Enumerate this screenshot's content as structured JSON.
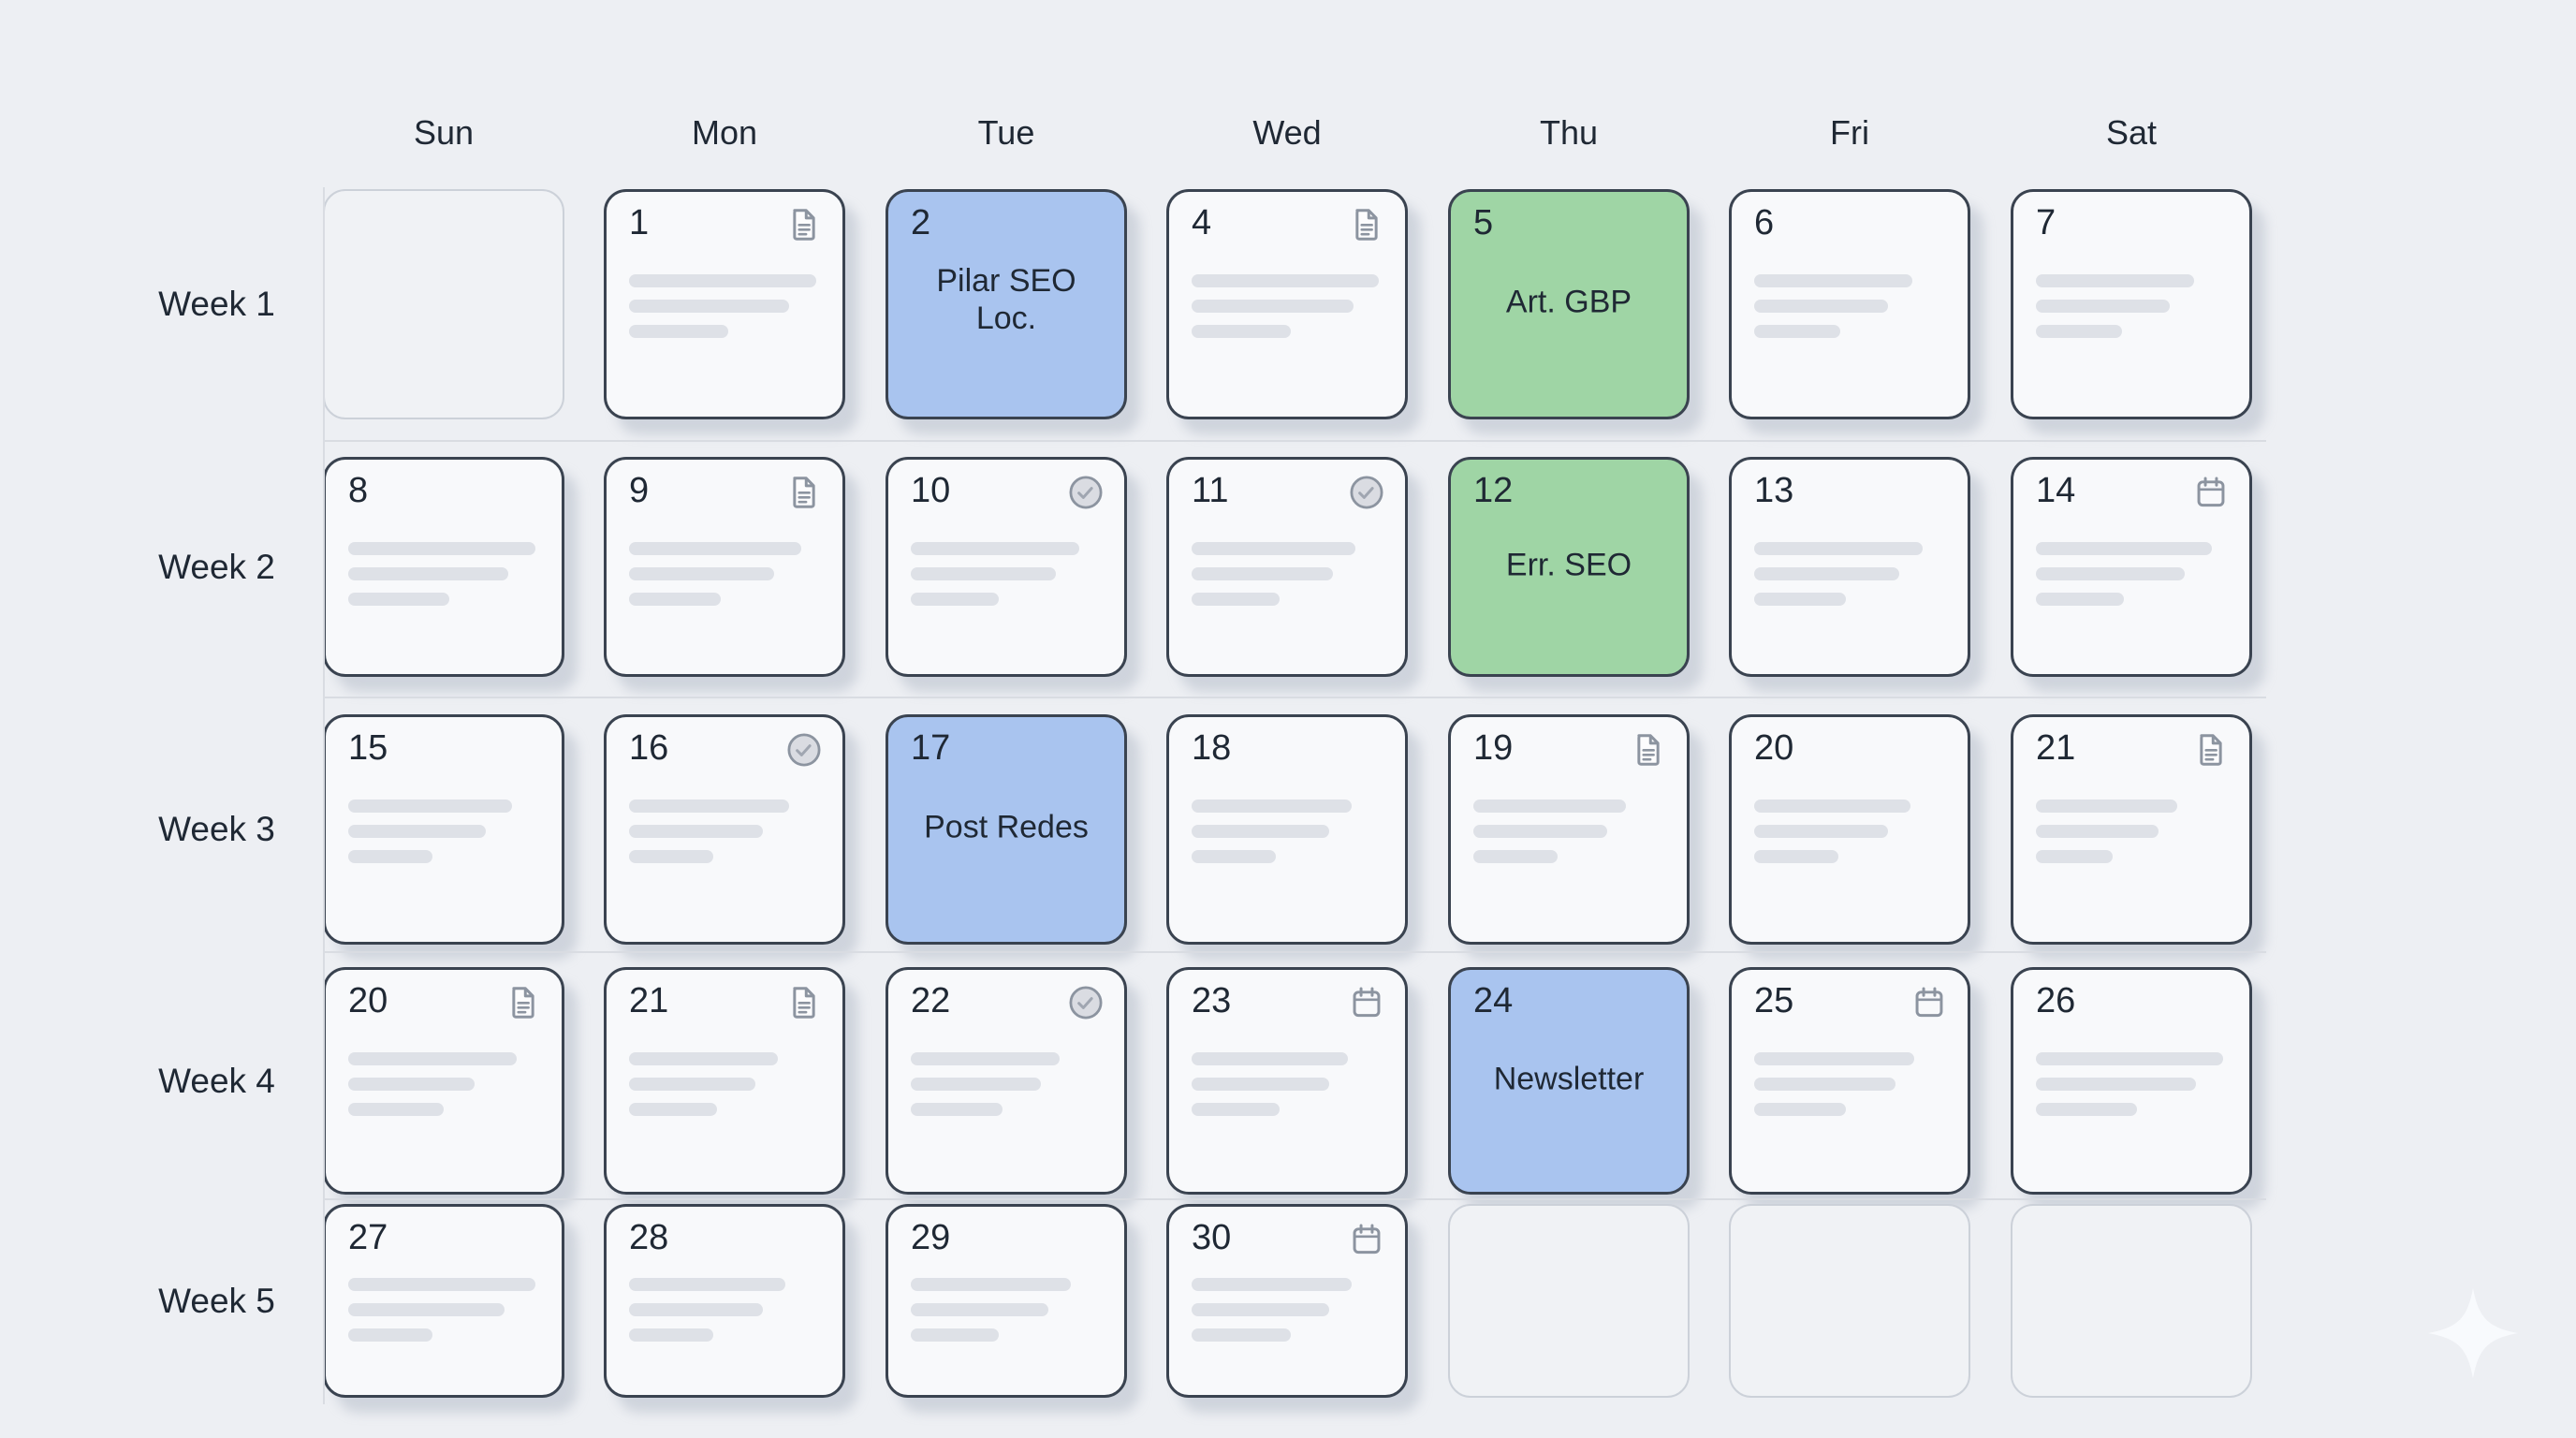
{
  "day_headers": [
    "Sun",
    "Mon",
    "Tue",
    "Wed",
    "Thu",
    "Fri",
    "Sat"
  ],
  "weeks": [
    {
      "label": "Week 1",
      "days": [
        {
          "type": "ghost"
        },
        {
          "day": "1",
          "icon": "document",
          "lines": [
            98,
            84,
            52
          ]
        },
        {
          "day": "2",
          "event": "Pilar SEO Loc.",
          "color": "blue"
        },
        {
          "day": "4",
          "icon": "document",
          "lines": [
            98,
            85,
            52
          ]
        },
        {
          "day": "5",
          "event": "Art. GBP",
          "color": "green"
        },
        {
          "day": "6",
          "lines": [
            83,
            70,
            45
          ]
        },
        {
          "day": "7",
          "lines": [
            83,
            70,
            45
          ]
        }
      ]
    },
    {
      "label": "Week 2",
      "days": [
        {
          "day": "8",
          "lines": [
            98,
            84,
            53
          ]
        },
        {
          "day": "9",
          "icon": "document",
          "lines": [
            90,
            76,
            48
          ]
        },
        {
          "day": "10",
          "icon": "check-circle",
          "lines": [
            88,
            76,
            46
          ]
        },
        {
          "day": "11",
          "icon": "check-circle",
          "lines": [
            86,
            74,
            46
          ]
        },
        {
          "day": "12",
          "event": "Err. SEO",
          "color": "green"
        },
        {
          "day": "13",
          "lines": [
            88,
            76,
            48
          ]
        },
        {
          "day": "14",
          "icon": "calendar",
          "lines": [
            92,
            78,
            46
          ]
        }
      ]
    },
    {
      "label": "Week 3",
      "days": [
        {
          "day": "15",
          "lines": [
            86,
            72,
            44
          ]
        },
        {
          "day": "16",
          "icon": "check-circle",
          "lines": [
            84,
            70,
            44
          ]
        },
        {
          "day": "17",
          "event": "Post Redes",
          "color": "blue"
        },
        {
          "day": "18",
          "lines": [
            84,
            72,
            44
          ]
        },
        {
          "day": "19",
          "icon": "document",
          "lines": [
            80,
            70,
            44
          ]
        },
        {
          "day": "20",
          "lines": [
            82,
            70,
            44
          ]
        },
        {
          "day": "21",
          "icon": "document",
          "lines": [
            74,
            64,
            40
          ]
        }
      ]
    },
    {
      "label": "Week 4",
      "days": [
        {
          "day": "20",
          "icon": "document",
          "lines": [
            88,
            66,
            50
          ]
        },
        {
          "day": "21",
          "icon": "document",
          "lines": [
            78,
            66,
            46
          ]
        },
        {
          "day": "22",
          "icon": "check-circle",
          "lines": [
            78,
            68,
            48
          ]
        },
        {
          "day": "23",
          "icon": "calendar",
          "lines": [
            82,
            72,
            46
          ]
        },
        {
          "day": "24",
          "event": "Newsletter",
          "color": "blue"
        },
        {
          "day": "25",
          "icon": "calendar",
          "lines": [
            84,
            74,
            48
          ]
        },
        {
          "day": "26",
          "lines": [
            98,
            84,
            53
          ]
        }
      ]
    },
    {
      "label": "Week 5",
      "days": [
        {
          "day": "27",
          "lines": [
            98,
            82,
            44
          ]
        },
        {
          "day": "28",
          "lines": [
            82,
            70,
            44
          ]
        },
        {
          "day": "29",
          "lines": [
            84,
            72,
            46
          ]
        },
        {
          "day": "30",
          "icon": "calendar",
          "lines": [
            84,
            72,
            52
          ]
        },
        {
          "type": "ghost"
        },
        {
          "type": "ghost"
        },
        {
          "type": "ghost"
        }
      ]
    }
  ],
  "icons": [
    "document-icon",
    "check-circle-icon",
    "calendar-icon",
    "sparkle-icon"
  ],
  "colors": {
    "background": "#edeff3",
    "cell_bg": "#f8f9fb",
    "ghost_bg": "#f0f2f5",
    "cell_border": "#3a4350",
    "ghost_border": "#ccd1d9",
    "event_blue": "#a9c4ef",
    "event_green": "#9fd5a5",
    "text": "#1f2834",
    "icon_gray": "#8c94a0",
    "placeholder_line": "#dee1e7",
    "divider": "#d9dce2",
    "shadow": "rgba(163,172,188,0.40)",
    "sparkle": "#fafbfe"
  }
}
